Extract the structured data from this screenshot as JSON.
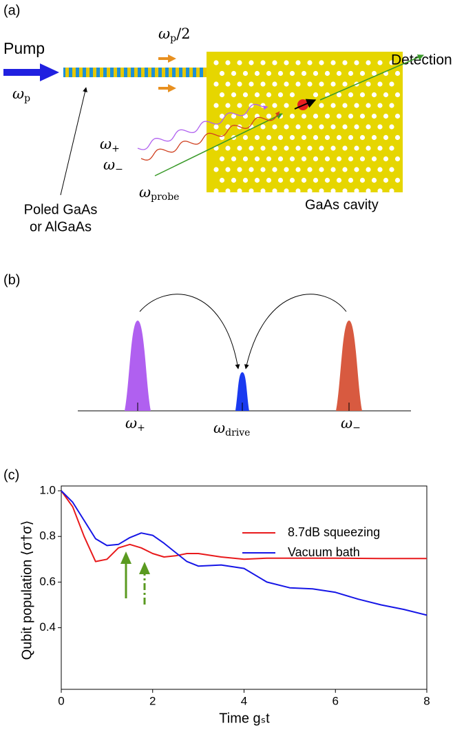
{
  "panel_a": {
    "label": "(a)",
    "pump": "Pump",
    "pump_freq": {
      "symbol": "ω",
      "subscript": "p"
    },
    "half_freq": {
      "symbol": "ω",
      "subscript": "p",
      "suffix": "/2"
    },
    "detection": "Detection",
    "plus": {
      "symbol": "ω",
      "subscript": "+"
    },
    "minus": {
      "symbol": "ω",
      "subscript": "−"
    },
    "probe": {
      "symbol": "ω",
      "subscript": "probe"
    },
    "cavity": "GaAs cavity",
    "poled": [
      "Poled GaAs",
      "or AlGaAs"
    ]
  },
  "panel_b": {
    "label": "(b)",
    "plus": {
      "symbol": "ω",
      "subscript": "+"
    },
    "drive": {
      "symbol": "ω",
      "subscript": "drive"
    },
    "minus": {
      "symbol": "ω",
      "subscript": "−"
    }
  },
  "panel_c": {
    "label": "(c)"
  },
  "chart_data": {
    "type": "line",
    "xlabel": "Time gₛt",
    "ylabel": "Qubit population ⟨σ†σ⟩",
    "x": [
      0,
      0.25,
      0.5,
      0.75,
      1,
      1.25,
      1.5,
      1.75,
      2,
      2.25,
      2.5,
      2.75,
      3,
      3.5,
      4,
      4.5,
      5,
      5.5,
      6,
      6.5,
      7,
      7.5,
      8
    ],
    "series": [
      {
        "name": "8.7dB squeezing",
        "color": "#e8191b",
        "values": [
          1.0,
          0.93,
          0.8,
          0.69,
          0.7,
          0.75,
          0.765,
          0.75,
          0.725,
          0.71,
          0.715,
          0.725,
          0.725,
          0.71,
          0.7,
          0.705,
          0.705,
          0.705,
          0.705,
          0.704,
          0.703,
          0.703,
          0.703
        ]
      },
      {
        "name": "Vacuum bath",
        "color": "#1515e6",
        "values": [
          1.0,
          0.95,
          0.87,
          0.79,
          0.76,
          0.765,
          0.795,
          0.815,
          0.805,
          0.77,
          0.73,
          0.69,
          0.67,
          0.675,
          0.66,
          0.6,
          0.575,
          0.57,
          0.555,
          0.525,
          0.5,
          0.48,
          0.455
        ]
      }
    ],
    "xlim": [
      0,
      8
    ],
    "ylim": [
      0.13,
      1.0
    ],
    "xticks": [
      0,
      2,
      4,
      6,
      8
    ],
    "yticks": [
      0.4,
      0.6,
      0.8,
      {
        "value": 1.0,
        "label": "1.0"
      }
    ],
    "legend": "upper right"
  }
}
